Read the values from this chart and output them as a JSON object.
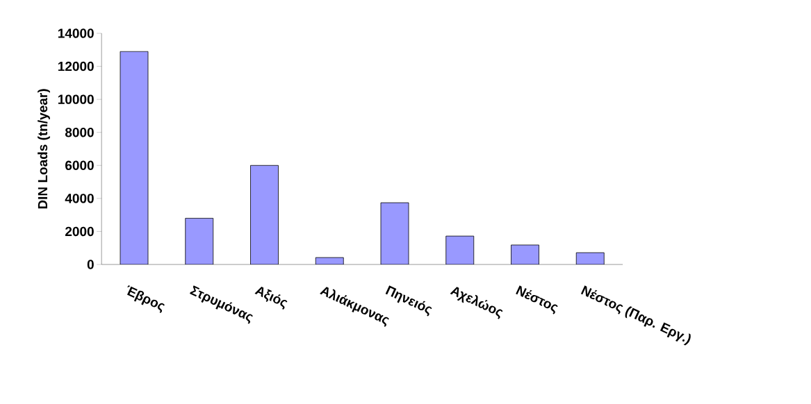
{
  "chart_data": {
    "type": "bar",
    "ylabel": "DIN Loads (tn/year)",
    "categories": [
      "Έβρος",
      "Στρυμόνας",
      "Αξιός",
      "Αλιάκμονας",
      "Πηνειός",
      "Αχελώος",
      "Νέστος",
      "Νέστος (Παρ. Εργ.)"
    ],
    "values": [
      12900,
      2800,
      6000,
      420,
      3740,
      1720,
      1180,
      715
    ],
    "color": "#9999ff",
    "ylim": [
      0,
      14000
    ],
    "yticks": [
      0,
      2000,
      4000,
      6000,
      8000,
      10000,
      12000,
      14000
    ],
    "grid": false
  }
}
